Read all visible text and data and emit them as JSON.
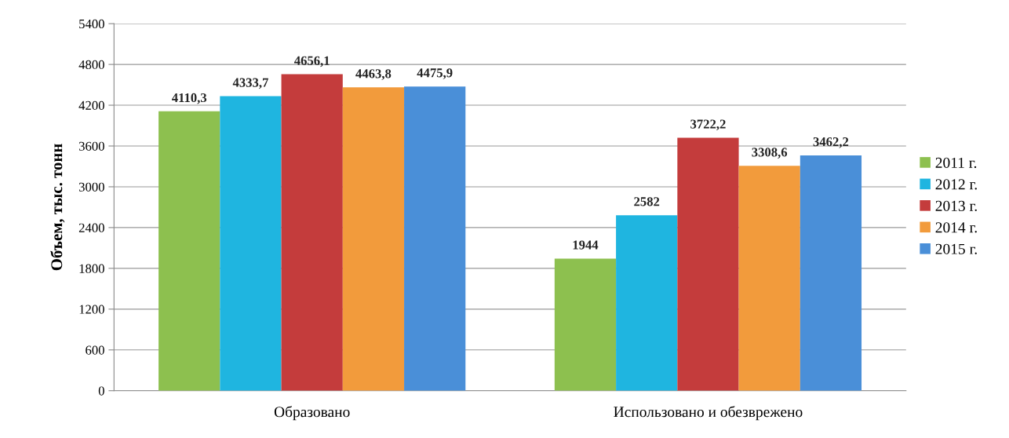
{
  "chart_data": {
    "type": "bar",
    "ylabel": "Объем, тыс. тонн",
    "categories": [
      "Образовано",
      "Использовано и обезврежено"
    ],
    "series": [
      {
        "name": "2011 г.",
        "color": "#8dc04f",
        "values": [
          4110.3,
          1944
        ],
        "value_labels": [
          "4110,3",
          "1944"
        ]
      },
      {
        "name": "2012 г.",
        "color": "#1fb5e0",
        "values": [
          4333.7,
          2582
        ],
        "value_labels": [
          "4333,7",
          "2582"
        ]
      },
      {
        "name": "2013 г.",
        "color": "#c43c3c",
        "values": [
          4656.1,
          3722.2
        ],
        "value_labels": [
          "4656,1",
          "3722,2"
        ]
      },
      {
        "name": "2014 г.",
        "color": "#f29b3c",
        "values": [
          4463.8,
          3308.6
        ],
        "value_labels": [
          "4463,8",
          "3308,6"
        ]
      },
      {
        "name": "2015 г.",
        "color": "#4a8fd8",
        "values": [
          4475.9,
          3462.2
        ],
        "value_labels": [
          "4475,9",
          "3462,2"
        ]
      }
    ],
    "ylim": [
      0,
      5400
    ],
    "yticks": [
      0,
      600,
      1200,
      1800,
      2400,
      3000,
      3600,
      4200,
      4800,
      5400
    ],
    "grid": "y",
    "legend": "right"
  }
}
